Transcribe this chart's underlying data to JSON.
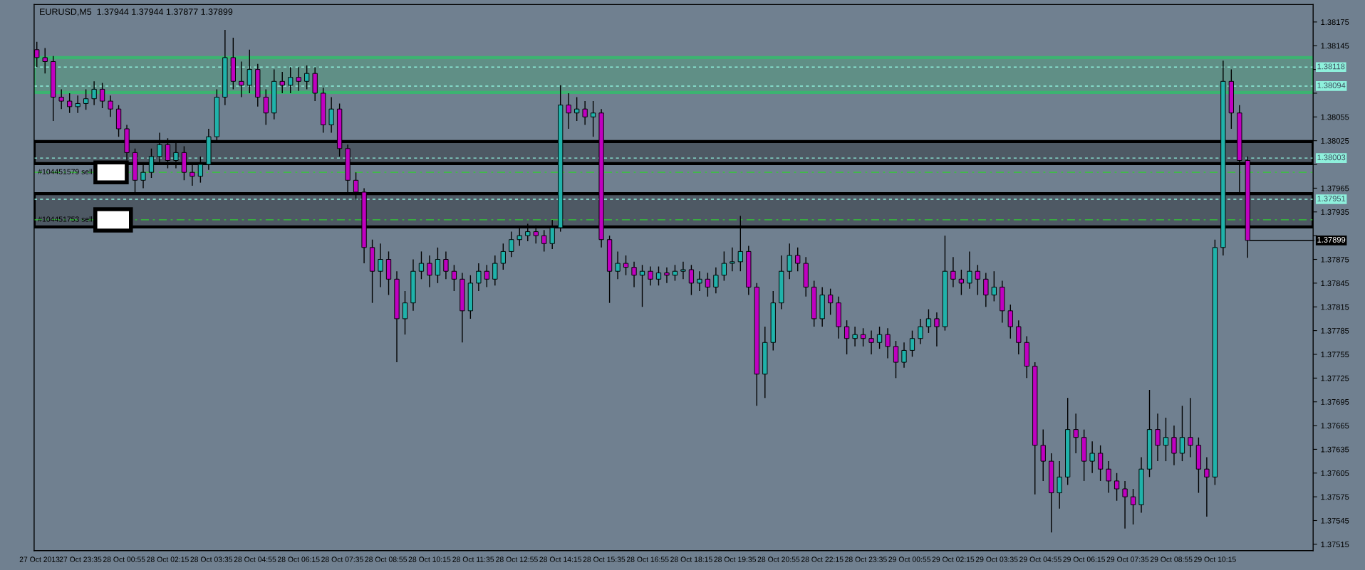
{
  "chart_data": {
    "type": "candlestick",
    "title": "EURUSD,M5  1.37944 1.37944 1.37877 1.37899",
    "x": [
      "2013-10-27T22:15",
      "2013-10-27T22:30",
      "2013-10-27T22:45",
      "2013-10-27T23:00",
      "2013-10-27T23:15",
      "2013-10-27T23:30",
      "2013-10-27T23:45",
      "2013-10-28T00:00",
      "2013-10-28T00:15",
      "2013-10-28T00:30",
      "2013-10-28T00:45",
      "2013-10-28T01:00",
      "2013-10-28T01:15",
      "2013-10-28T01:30",
      "2013-10-28T01:45",
      "2013-10-28T02:00",
      "2013-10-28T02:15",
      "2013-10-28T02:30",
      "2013-10-28T02:45",
      "2013-10-28T03:00",
      "2013-10-28T03:15",
      "2013-10-28T03:30",
      "2013-10-28T03:45",
      "2013-10-28T04:00",
      "2013-10-28T04:15",
      "2013-10-28T04:30",
      "2013-10-28T04:45",
      "2013-10-28T05:00",
      "2013-10-28T05:15",
      "2013-10-28T05:30",
      "2013-10-28T05:45",
      "2013-10-28T06:00",
      "2013-10-28T06:15",
      "2013-10-28T06:30",
      "2013-10-28T06:45",
      "2013-10-28T07:00",
      "2013-10-28T07:15",
      "2013-10-28T07:30",
      "2013-10-28T07:45",
      "2013-10-28T08:00",
      "2013-10-28T08:15",
      "2013-10-28T08:30",
      "2013-10-28T08:45",
      "2013-10-28T09:00",
      "2013-10-28T09:15",
      "2013-10-28T09:30",
      "2013-10-28T09:45",
      "2013-10-28T10:00",
      "2013-10-28T10:15",
      "2013-10-28T10:30",
      "2013-10-28T10:45",
      "2013-10-28T11:00",
      "2013-10-28T11:15",
      "2013-10-28T11:30",
      "2013-10-28T11:45",
      "2013-10-28T12:00",
      "2013-10-28T12:15",
      "2013-10-28T12:30",
      "2013-10-28T12:45",
      "2013-10-28T13:00",
      "2013-10-28T13:15",
      "2013-10-28T13:30",
      "2013-10-28T13:45",
      "2013-10-28T14:00",
      "2013-10-28T14:15",
      "2013-10-28T14:30",
      "2013-10-28T14:45",
      "2013-10-28T15:00",
      "2013-10-28T15:15",
      "2013-10-28T15:30",
      "2013-10-28T15:45",
      "2013-10-28T16:00",
      "2013-10-28T16:15",
      "2013-10-28T16:30",
      "2013-10-28T16:45",
      "2013-10-28T17:00",
      "2013-10-28T17:15",
      "2013-10-28T17:30",
      "2013-10-28T17:45",
      "2013-10-28T18:00",
      "2013-10-28T18:15",
      "2013-10-28T18:30",
      "2013-10-28T18:45",
      "2013-10-28T19:00",
      "2013-10-28T19:15",
      "2013-10-28T19:30",
      "2013-10-28T19:45",
      "2013-10-28T20:00",
      "2013-10-28T20:15",
      "2013-10-28T20:30",
      "2013-10-28T20:45",
      "2013-10-28T21:00",
      "2013-10-28T21:15",
      "2013-10-28T21:30",
      "2013-10-28T21:45",
      "2013-10-28T22:00",
      "2013-10-28T22:15",
      "2013-10-28T22:30",
      "2013-10-28T22:45",
      "2013-10-28T23:00",
      "2013-10-28T23:15",
      "2013-10-28T23:30",
      "2013-10-28T23:45",
      "2013-10-29T00:00",
      "2013-10-29T00:15",
      "2013-10-29T00:30",
      "2013-10-29T00:45",
      "2013-10-29T01:00",
      "2013-10-29T01:15",
      "2013-10-29T01:30",
      "2013-10-29T01:45",
      "2013-10-29T02:00",
      "2013-10-29T02:15",
      "2013-10-29T02:30",
      "2013-10-29T02:45",
      "2013-10-29T03:00",
      "2013-10-29T03:15",
      "2013-10-29T03:30",
      "2013-10-29T03:45",
      "2013-10-29T04:00",
      "2013-10-29T04:15",
      "2013-10-29T04:30",
      "2013-10-29T04:45",
      "2013-10-29T05:00",
      "2013-10-29T05:15",
      "2013-10-29T05:30",
      "2013-10-29T05:45",
      "2013-10-29T06:00",
      "2013-10-29T06:15",
      "2013-10-29T06:30",
      "2013-10-29T06:45",
      "2013-10-29T07:00",
      "2013-10-29T07:15",
      "2013-10-29T07:30",
      "2013-10-29T07:45",
      "2013-10-29T08:00",
      "2013-10-29T08:15",
      "2013-10-29T08:30",
      "2013-10-29T08:45",
      "2013-10-29T09:00",
      "2013-10-29T09:15",
      "2013-10-29T09:30",
      "2013-10-29T09:45",
      "2013-10-29T10:00",
      "2013-10-29T10:15",
      "2013-10-29T10:30",
      "2013-10-29T10:45",
      "2013-10-29T11:00",
      "2013-10-29T11:15"
    ],
    "ohlc": [
      [
        1.3814,
        1.3815,
        1.38118,
        1.3813
      ],
      [
        1.3813,
        1.38142,
        1.3811,
        1.38125
      ],
      [
        1.38125,
        1.38132,
        1.3805,
        1.3808
      ],
      [
        1.3808,
        1.3809,
        1.38065,
        1.38075
      ],
      [
        1.38075,
        1.38085,
        1.3806,
        1.38068
      ],
      [
        1.38068,
        1.38082,
        1.3806,
        1.38072
      ],
      [
        1.38072,
        1.3809,
        1.38064,
        1.38078
      ],
      [
        1.38078,
        1.381,
        1.3807,
        1.3809
      ],
      [
        1.3809,
        1.38098,
        1.38066,
        1.38075
      ],
      [
        1.38075,
        1.38082,
        1.38055,
        1.38065
      ],
      [
        1.38065,
        1.3807,
        1.3803,
        1.3804
      ],
      [
        1.3804,
        1.38045,
        1.38,
        1.3801
      ],
      [
        1.3801,
        1.38015,
        1.3796,
        1.37975
      ],
      [
        1.37975,
        1.37995,
        1.37965,
        1.37985
      ],
      [
        1.37985,
        1.38015,
        1.37978,
        1.38005
      ],
      [
        1.38005,
        1.38035,
        1.37998,
        1.3802
      ],
      [
        1.3802,
        1.38028,
        1.3799,
        1.38
      ],
      [
        1.38,
        1.38022,
        1.3799,
        1.3801
      ],
      [
        1.3801,
        1.38018,
        1.37975,
        1.37985
      ],
      [
        1.37985,
        1.37995,
        1.37968,
        1.3798
      ],
      [
        1.3798,
        1.38005,
        1.37972,
        1.37995
      ],
      [
        1.37995,
        1.3804,
        1.37988,
        1.3803
      ],
      [
        1.3803,
        1.3809,
        1.38022,
        1.3808
      ],
      [
        1.3808,
        1.38165,
        1.3807,
        1.3813
      ],
      [
        1.3813,
        1.38155,
        1.3809,
        1.381
      ],
      [
        1.381,
        1.38125,
        1.3808,
        1.38095
      ],
      [
        1.38095,
        1.3814,
        1.38085,
        1.38115
      ],
      [
        1.38115,
        1.38122,
        1.38068,
        1.3808
      ],
      [
        1.3808,
        1.3809,
        1.38045,
        1.3806
      ],
      [
        1.3806,
        1.38115,
        1.38052,
        1.381
      ],
      [
        1.381,
        1.38112,
        1.38085,
        1.38095
      ],
      [
        1.38095,
        1.38118,
        1.38085,
        1.38105
      ],
      [
        1.38105,
        1.38118,
        1.38088,
        1.381
      ],
      [
        1.381,
        1.3812,
        1.3809,
        1.3811
      ],
      [
        1.3811,
        1.38118,
        1.38075,
        1.38085
      ],
      [
        1.38085,
        1.38092,
        1.38035,
        1.38045
      ],
      [
        1.38045,
        1.3808,
        1.38035,
        1.38065
      ],
      [
        1.38065,
        1.38072,
        1.38005,
        1.38015
      ],
      [
        1.38015,
        1.3802,
        1.3796,
        1.37975
      ],
      [
        1.37975,
        1.37985,
        1.3795,
        1.3796
      ],
      [
        1.3796,
        1.37965,
        1.3787,
        1.3789
      ],
      [
        1.3789,
        1.379,
        1.3782,
        1.3786
      ],
      [
        1.3786,
        1.37895,
        1.3784,
        1.37875
      ],
      [
        1.37875,
        1.37885,
        1.3783,
        1.3785
      ],
      [
        1.3785,
        1.3786,
        1.37745,
        1.378
      ],
      [
        1.378,
        1.37835,
        1.3778,
        1.3782
      ],
      [
        1.3782,
        1.37875,
        1.3781,
        1.3786
      ],
      [
        1.3786,
        1.37885,
        1.3785,
        1.3787
      ],
      [
        1.3787,
        1.3788,
        1.3784,
        1.37855
      ],
      [
        1.37855,
        1.3789,
        1.37845,
        1.37875
      ],
      [
        1.37875,
        1.37885,
        1.3785,
        1.3786
      ],
      [
        1.3786,
        1.37868,
        1.37835,
        1.3785
      ],
      [
        1.3785,
        1.37858,
        1.3777,
        1.3781
      ],
      [
        1.3781,
        1.37855,
        1.378,
        1.37845
      ],
      [
        1.37845,
        1.3787,
        1.37835,
        1.3786
      ],
      [
        1.3786,
        1.37868,
        1.3784,
        1.3785
      ],
      [
        1.3785,
        1.3788,
        1.37842,
        1.3787
      ],
      [
        1.3787,
        1.37895,
        1.37862,
        1.37885
      ],
      [
        1.37885,
        1.3791,
        1.37878,
        1.379
      ],
      [
        1.379,
        1.37915,
        1.37892,
        1.37905
      ],
      [
        1.37905,
        1.3792,
        1.37898,
        1.3791
      ],
      [
        1.3791,
        1.37918,
        1.37895,
        1.37905
      ],
      [
        1.37905,
        1.37912,
        1.37885,
        1.37895
      ],
      [
        1.37895,
        1.37925,
        1.37888,
        1.37915
      ],
      [
        1.37915,
        1.38095,
        1.3791,
        1.3807
      ],
      [
        1.3807,
        1.38085,
        1.3804,
        1.3806
      ],
      [
        1.3806,
        1.3808,
        1.3805,
        1.38065
      ],
      [
        1.38065,
        1.38075,
        1.38045,
        1.38055
      ],
      [
        1.38055,
        1.38075,
        1.3803,
        1.3806
      ],
      [
        1.3806,
        1.38065,
        1.3789,
        1.379
      ],
      [
        1.379,
        1.37905,
        1.3782,
        1.3786
      ],
      [
        1.3786,
        1.37885,
        1.3785,
        1.3787
      ],
      [
        1.3787,
        1.3788,
        1.37855,
        1.37865
      ],
      [
        1.37865,
        1.37872,
        1.3784,
        1.37855
      ],
      [
        1.37855,
        1.37868,
        1.37815,
        1.3786
      ],
      [
        1.3786,
        1.37866,
        1.37842,
        1.3785
      ],
      [
        1.3785,
        1.37866,
        1.37842,
        1.37858
      ],
      [
        1.37858,
        1.37865,
        1.37845,
        1.37855
      ],
      [
        1.37855,
        1.37868,
        1.37848,
        1.3786
      ],
      [
        1.3786,
        1.37872,
        1.3785,
        1.37862
      ],
      [
        1.37862,
        1.37868,
        1.3783,
        1.37845
      ],
      [
        1.37845,
        1.3786,
        1.37835,
        1.3785
      ],
      [
        1.3785,
        1.37858,
        1.37828,
        1.3784
      ],
      [
        1.3784,
        1.37865,
        1.37832,
        1.37855
      ],
      [
        1.37855,
        1.37885,
        1.37848,
        1.3787
      ],
      [
        1.3787,
        1.3789,
        1.3786,
        1.37872
      ],
      [
        1.37872,
        1.3793,
        1.3786,
        1.37885
      ],
      [
        1.37885,
        1.37892,
        1.3783,
        1.3784
      ],
      [
        1.3784,
        1.37845,
        1.3769,
        1.3773
      ],
      [
        1.3773,
        1.3779,
        1.377,
        1.3777
      ],
      [
        1.3777,
        1.37835,
        1.3776,
        1.3782
      ],
      [
        1.3782,
        1.3788,
        1.37812,
        1.3786
      ],
      [
        1.3786,
        1.37895,
        1.3785,
        1.3788
      ],
      [
        1.3788,
        1.3789,
        1.3786,
        1.3787
      ],
      [
        1.3787,
        1.37878,
        1.37828,
        1.3784
      ],
      [
        1.3784,
        1.37848,
        1.3779,
        1.378
      ],
      [
        1.378,
        1.3784,
        1.3779,
        1.3783
      ],
      [
        1.3783,
        1.37838,
        1.37805,
        1.3782
      ],
      [
        1.3782,
        1.37828,
        1.37775,
        1.3779
      ],
      [
        1.3779,
        1.37798,
        1.37755,
        1.37775
      ],
      [
        1.37775,
        1.3779,
        1.37765,
        1.3778
      ],
      [
        1.3778,
        1.37788,
        1.37765,
        1.37775
      ],
      [
        1.37775,
        1.37785,
        1.37755,
        1.3777
      ],
      [
        1.3777,
        1.3779,
        1.37762,
        1.3778
      ],
      [
        1.3778,
        1.37788,
        1.3775,
        1.37765
      ],
      [
        1.37765,
        1.37772,
        1.37725,
        1.37745
      ],
      [
        1.37745,
        1.3777,
        1.37738,
        1.3776
      ],
      [
        1.3776,
        1.37785,
        1.37752,
        1.37775
      ],
      [
        1.37775,
        1.378,
        1.37768,
        1.3779
      ],
      [
        1.3779,
        1.37812,
        1.37782,
        1.378
      ],
      [
        1.378,
        1.37808,
        1.37765,
        1.3779
      ],
      [
        1.3779,
        1.37905,
        1.37785,
        1.3786
      ],
      [
        1.3786,
        1.37878,
        1.3784,
        1.3785
      ],
      [
        1.3785,
        1.37862,
        1.3783,
        1.37845
      ],
      [
        1.37845,
        1.37885,
        1.37838,
        1.3786
      ],
      [
        1.3786,
        1.37868,
        1.3783,
        1.3785
      ],
      [
        1.3785,
        1.37858,
        1.37815,
        1.3783
      ],
      [
        1.3783,
        1.3786,
        1.37822,
        1.3784
      ],
      [
        1.3784,
        1.37848,
        1.37795,
        1.3781
      ],
      [
        1.3781,
        1.37818,
        1.37775,
        1.3779
      ],
      [
        1.3779,
        1.37798,
        1.37755,
        1.3777
      ],
      [
        1.3777,
        1.37778,
        1.37725,
        1.3774
      ],
      [
        1.3774,
        1.37745,
        1.37578,
        1.3764
      ],
      [
        1.3764,
        1.3766,
        1.37595,
        1.3762
      ],
      [
        1.3762,
        1.3763,
        1.3753,
        1.3758
      ],
      [
        1.3758,
        1.3762,
        1.3756,
        1.376
      ],
      [
        1.376,
        1.377,
        1.3759,
        1.3766
      ],
      [
        1.3766,
        1.3768,
        1.3763,
        1.3765
      ],
      [
        1.3765,
        1.3766,
        1.37595,
        1.3762
      ],
      [
        1.3762,
        1.37645,
        1.37605,
        1.3763
      ],
      [
        1.3763,
        1.3764,
        1.37595,
        1.3761
      ],
      [
        1.3761,
        1.3762,
        1.3758,
        1.37595
      ],
      [
        1.37595,
        1.37605,
        1.3757,
        1.37585
      ],
      [
        1.37585,
        1.37595,
        1.37535,
        1.37575
      ],
      [
        1.37575,
        1.37585,
        1.3754,
        1.37565
      ],
      [
        1.37565,
        1.37625,
        1.37555,
        1.3761
      ],
      [
        1.3761,
        1.3771,
        1.376,
        1.3766
      ],
      [
        1.3766,
        1.3768,
        1.3762,
        1.3764
      ],
      [
        1.3764,
        1.37675,
        1.3762,
        1.3765
      ],
      [
        1.3765,
        1.37665,
        1.37615,
        1.3763
      ],
      [
        1.3763,
        1.3769,
        1.3762,
        1.3765
      ],
      [
        1.3765,
        1.377,
        1.37625,
        1.3764
      ],
      [
        1.3764,
        1.3765,
        1.3758,
        1.3761
      ],
      [
        1.3761,
        1.37625,
        1.3755,
        1.376
      ],
      [
        1.376,
        1.379,
        1.3759,
        1.3789
      ],
      [
        1.3789,
        1.38126,
        1.3788,
        1.381
      ],
      [
        1.381,
        1.38115,
        1.3804,
        1.3806
      ],
      [
        1.3806,
        1.3807,
        1.3796,
        1.38
      ],
      [
        1.38,
        1.38005,
        1.37877,
        1.37899
      ]
    ],
    "colors": [
      "#c000c0",
      "#c000c0",
      "#c000c0",
      "#c000c0",
      "#c000c0",
      "#20b2aa",
      "#20b2aa",
      "#20b2aa",
      "#c000c0",
      "#c000c0",
      "#c000c0",
      "#c000c0",
      "#c000c0",
      "#20b2aa",
      "#20b2aa",
      "#20b2aa",
      "#c000c0",
      "#20b2aa",
      "#c000c0",
      "#c000c0",
      "#20b2aa",
      "#20b2aa",
      "#20b2aa",
      "#20b2aa",
      "#c000c0",
      "#c000c0",
      "#20b2aa",
      "#c000c0",
      "#c000c0",
      "#20b2aa",
      "#c000c0",
      "#20b2aa",
      "#c000c0",
      "#20b2aa",
      "#c000c0",
      "#c000c0",
      "#20b2aa",
      "#c000c0",
      "#c000c0",
      "#c000c0",
      "#c000c0",
      "#c000c0",
      "#20b2aa",
      "#c000c0",
      "#c000c0",
      "#20b2aa",
      "#20b2aa",
      "#20b2aa",
      "#c000c0",
      "#20b2aa",
      "#c000c0",
      "#c000c0",
      "#c000c0",
      "#20b2aa",
      "#20b2aa",
      "#c000c0",
      "#20b2aa",
      "#20b2aa",
      "#20b2aa",
      "#20b2aa",
      "#20b2aa",
      "#c000c0",
      "#c000c0",
      "#20b2aa",
      "#20b2aa",
      "#c000c0",
      "#20b2aa",
      "#c000c0",
      "#20b2aa",
      "#c000c0",
      "#c000c0",
      "#20b2aa",
      "#c000c0",
      "#c000c0",
      "#20b2aa",
      "#c000c0",
      "#20b2aa",
      "#c000c0",
      "#20b2aa",
      "#20b2aa",
      "#c000c0",
      "#20b2aa",
      "#c000c0",
      "#20b2aa",
      "#20b2aa",
      "#20b2aa",
      "#20b2aa",
      "#c000c0",
      "#c000c0",
      "#20b2aa",
      "#20b2aa",
      "#20b2aa",
      "#20b2aa",
      "#c000c0",
      "#c000c0",
      "#c000c0",
      "#20b2aa",
      "#c000c0",
      "#c000c0",
      "#c000c0",
      "#20b2aa",
      "#c000c0",
      "#c000c0",
      "#20b2aa",
      "#c000c0",
      "#c000c0",
      "#20b2aa",
      "#20b2aa",
      "#20b2aa",
      "#20b2aa",
      "#c000c0",
      "#20b2aa",
      "#c000c0",
      "#c000c0",
      "#20b2aa",
      "#c000c0",
      "#c000c0",
      "#20b2aa",
      "#c000c0",
      "#c000c0",
      "#c000c0",
      "#c000c0",
      "#c000c0",
      "#c000c0",
      "#c000c0",
      "#20b2aa",
      "#20b2aa",
      "#c000c0",
      "#c000c0",
      "#20b2aa",
      "#c000c0",
      "#c000c0",
      "#c000c0",
      "#c000c0",
      "#c000c0",
      "#20b2aa",
      "#20b2aa",
      "#c000c0",
      "#20b2aa",
      "#c000c0",
      "#20b2aa",
      "#c000c0",
      "#c000c0",
      "#c000c0",
      "#20b2aa",
      "#20b2aa",
      "#c000c0",
      "#c000c0",
      "#c000c0"
    ],
    "xlim": [
      "2013-10-27T22:10",
      "2013-10-29T13:15"
    ],
    "xticks": [
      {
        "value": "2013-10-27T22:20",
        "label": "27 Oct 2013"
      },
      {
        "value": "2013-10-27T23:35",
        "label": "27 Oct 23:35"
      },
      {
        "value": "2013-10-28T00:55",
        "label": "28 Oct 00:55"
      },
      {
        "value": "2013-10-28T02:15",
        "label": "28 Oct 02:15"
      },
      {
        "value": "2013-10-28T03:35",
        "label": "28 Oct 03:35"
      },
      {
        "value": "2013-10-28T04:55",
        "label": "28 Oct 04:55"
      },
      {
        "value": "2013-10-28T06:15",
        "label": "28 Oct 06:15"
      },
      {
        "value": "2013-10-28T07:35",
        "label": "28 Oct 07:35"
      },
      {
        "value": "2013-10-28T08:55",
        "label": "28 Oct 08:55"
      },
      {
        "value": "2013-10-28T10:15",
        "label": "28 Oct 10:15"
      },
      {
        "value": "2013-10-28T11:35",
        "label": "28 Oct 11:35"
      },
      {
        "value": "2013-10-28T12:55",
        "label": "28 Oct 12:55"
      },
      {
        "value": "2013-10-28T14:15",
        "label": "28 Oct 14:15"
      },
      {
        "value": "2013-10-28T15:35",
        "label": "28 Oct 15:35"
      },
      {
        "value": "2013-10-28T16:55",
        "label": "28 Oct 16:55"
      },
      {
        "value": "2013-10-28T18:15",
        "label": "28 Oct 18:15"
      },
      {
        "value": "2013-10-28T19:35",
        "label": "28 Oct 19:35"
      },
      {
        "value": "2013-10-28T20:55",
        "label": "28 Oct 20:55"
      },
      {
        "value": "2013-10-28T22:15",
        "label": "28 Oct 22:15"
      },
      {
        "value": "2013-10-28T23:35",
        "label": "28 Oct 23:35"
      },
      {
        "value": "2013-10-29T00:55",
        "label": "29 Oct 00:55"
      },
      {
        "value": "2013-10-29T02:15",
        "label": "29 Oct 02:15"
      },
      {
        "value": "2013-10-29T03:35",
        "label": "29 Oct 03:35"
      },
      {
        "value": "2013-10-29T04:55",
        "label": "29 Oct 04:55"
      },
      {
        "value": "2013-10-29T06:15",
        "label": "29 Oct 06:15"
      },
      {
        "value": "2013-10-29T07:35",
        "label": "29 Oct 07:35"
      },
      {
        "value": "2013-10-29T08:55",
        "label": "29 Oct 08:55"
      },
      {
        "value": "2013-10-29T10:15",
        "label": "29 Oct 10:15"
      }
    ],
    "ylim": [
      1.37507,
      1.38197
    ],
    "yticks": [
      1.38175,
      1.38145,
      {
        "value": 1.38115,
        "label": null
      },
      {
        "value": 1.38085,
        "label": null
      },
      1.38055,
      1.38025,
      {
        "value": 1.37995,
        "label": null
      },
      1.37965,
      1.37935,
      {
        "value": 1.37905,
        "label": null
      },
      1.37875,
      1.37845,
      1.37815,
      1.37785,
      1.37755,
      1.37725,
      1.37695,
      1.37665,
      1.37635,
      1.37605,
      1.37575,
      1.37545,
      1.37515
    ],
    "ref_lines": [
      {
        "axis": "y",
        "value": 1.38118,
        "label": "1.38118",
        "color": "#8ef0dc",
        "line_style": "dotted"
      },
      {
        "axis": "y",
        "value": 1.38094,
        "label": "1.38094",
        "color": "#8ef0dc",
        "line_style": "dotted"
      },
      {
        "axis": "y",
        "value": 1.38003,
        "label": "1.38003",
        "color": "#8ef0dc",
        "line_style": "dotted"
      },
      {
        "axis": "y",
        "value": 1.37951,
        "label": "1.37951",
        "color": "#8ef0dc",
        "line_style": "dotted"
      },
      {
        "axis": "y",
        "value": 1.37985,
        "label": "#104451579 sell",
        "color": "#32cd32",
        "line_style": "dashed"
      },
      {
        "axis": "y",
        "value": 1.37925,
        "label": "#104451753 sell",
        "color": "#32cd32",
        "line_style": "dashed"
      }
    ],
    "annotations": [
      {
        "text": "1.37899",
        "x": "2013-10-29T11:15",
        "y": 1.37899
      }
    ],
    "bands": [
      {
        "axis": "y",
        "from": 1.38086,
        "to": 1.3813,
        "color": "#3cb371"
      },
      {
        "axis": "y",
        "from": 1.37996,
        "to": 1.38024,
        "color": "#000000"
      },
      {
        "axis": "y",
        "from": 1.37916,
        "to": 1.37958,
        "color": "#000000"
      }
    ]
  }
}
